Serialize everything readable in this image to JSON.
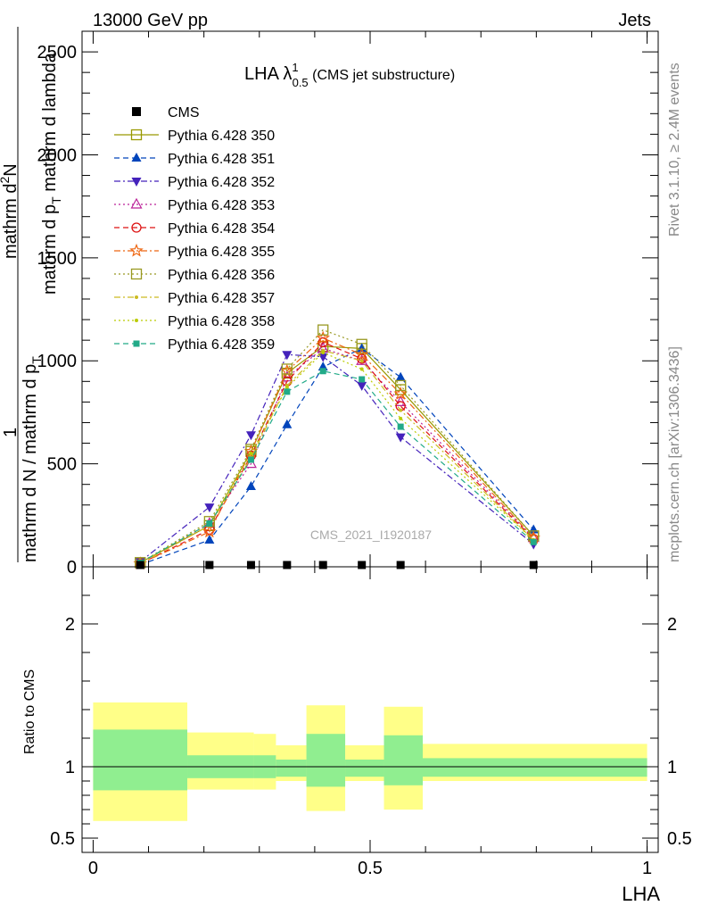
{
  "header": {
    "left": "13000 GeV pp",
    "right": "Jets"
  },
  "side": {
    "rivet": "Rivet 3.1.10, ≥ 2.4M events",
    "mcplots": "mcplots.cern.ch [arXiv:1306.3436]"
  },
  "title": {
    "main": "LHA λ",
    "sup": "1",
    "sub": "0.5",
    "suffix": " (CMS jet substructure)"
  },
  "watermark": "CMS_2021_I1920187",
  "ylabel": {
    "num": "1",
    "den": "mathrm d N / mathrm d p",
    "den_sub": "T",
    "num2": "mathrm d",
    "num2_sup": "2",
    "num2_tail": "N",
    "den2": "mathrm d p",
    "den2_sub": "T",
    "den2_tail": " mathrm d lambda"
  },
  "ratio_ylabel": "Ratio to CMS",
  "xlabel": "LHA",
  "colors": {
    "band_inner": "#90ee90",
    "band_outer": "#ffff88"
  },
  "chart_data": {
    "type": "line",
    "x_edges": [
      0,
      0.17,
      0.29,
      0.345,
      0.42,
      0.49,
      0.565,
      1.0
    ],
    "x_centers": [
      0.085,
      0.21,
      0.285,
      0.35,
      0.415,
      0.485,
      0.555,
      0.795
    ],
    "ylim": [
      0,
      2600
    ],
    "xlim": [
      -0.02,
      1.02
    ],
    "yticks": [
      0,
      500,
      1000,
      1500,
      2000,
      2500
    ],
    "xticks": [
      0,
      0.5,
      1
    ],
    "xtick_labels": [
      "0",
      "0.5",
      "1"
    ],
    "ratio_ylim": [
      0.4,
      2.4
    ],
    "ratio_yticks": [
      0.5,
      1,
      2
    ],
    "ratio_ytick_labels": [
      "0.5",
      "1",
      "2"
    ],
    "data": {
      "name": "CMS",
      "values": [
        0,
        0,
        0,
        0,
        0,
        0,
        0,
        0
      ],
      "x": [
        0.085,
        0.21,
        0.285,
        0.35,
        0.415,
        0.485,
        0.555,
        0.795
      ]
    },
    "ratio_bands": [
      {
        "x0": 0,
        "x1": 0.17,
        "inner": [
          0.835,
          1.26
        ],
        "outer": [
          0.62,
          1.45
        ]
      },
      {
        "x0": 0.17,
        "x1": 0.29,
        "inner": [
          0.92,
          1.08
        ],
        "outer": [
          0.84,
          1.24
        ]
      },
      {
        "x0": 0.29,
        "x1": 0.33,
        "inner": [
          0.92,
          1.08
        ],
        "outer": [
          0.84,
          1.23
        ]
      },
      {
        "x0": 0.33,
        "x1": 0.385,
        "inner": [
          0.93,
          1.05
        ],
        "outer": [
          0.9,
          1.15
        ]
      },
      {
        "x0": 0.385,
        "x1": 0.455,
        "inner": [
          0.86,
          1.23
        ],
        "outer": [
          0.69,
          1.43
        ]
      },
      {
        "x0": 0.455,
        "x1": 0.525,
        "inner": [
          0.93,
          1.05
        ],
        "outer": [
          0.9,
          1.15
        ]
      },
      {
        "x0": 0.525,
        "x1": 0.595,
        "inner": [
          0.87,
          1.22
        ],
        "outer": [
          0.7,
          1.42
        ]
      },
      {
        "x0": 0.595,
        "x1": 1.0,
        "inner": [
          0.93,
          1.06
        ],
        "outer": [
          0.9,
          1.16
        ]
      }
    ],
    "series": [
      {
        "name": "Pythia 6.428 350",
        "color": "#999900",
        "marker": "square-open",
        "dash": "solid",
        "values": [
          20,
          200,
          560,
          940,
          1070,
          1060,
          860,
          150
        ]
      },
      {
        "name": "Pythia 6.428 351",
        "color": "#0044bb",
        "marker": "triangle-up",
        "dash": "dashed",
        "values": [
          10,
          130,
          390,
          690,
          970,
          1060,
          920,
          180
        ]
      },
      {
        "name": "Pythia 6.428 352",
        "color": "#4422bb",
        "marker": "triangle-down",
        "dash": "dashdot",
        "values": [
          25,
          290,
          640,
          1030,
          1020,
          880,
          630,
          110
        ]
      },
      {
        "name": "Pythia 6.428 353",
        "color": "#bb2299",
        "marker": "triangle-open",
        "dash": "dotted",
        "values": [
          15,
          210,
          500,
          920,
          1060,
          1000,
          800,
          140
        ]
      },
      {
        "name": "Pythia 6.428 354",
        "color": "#dd1111",
        "marker": "circle-open",
        "dash": "dashed",
        "values": [
          15,
          180,
          540,
          900,
          1090,
          1010,
          780,
          135
        ]
      },
      {
        "name": "Pythia 6.428 355",
        "color": "#ee6611",
        "marker": "star-open",
        "dash": "dashdot",
        "values": [
          15,
          170,
          560,
          950,
          1110,
          1030,
          840,
          140
        ]
      },
      {
        "name": "Pythia 6.428 356",
        "color": "#999922",
        "marker": "square-open",
        "dash": "dotted",
        "values": [
          20,
          220,
          570,
          960,
          1150,
          1080,
          880,
          150
        ]
      },
      {
        "name": "Pythia 6.428 357",
        "color": "#ccbb22",
        "marker": "dot",
        "dash": "dashdot",
        "values": [
          15,
          200,
          530,
          880,
          1050,
          1000,
          760,
          130
        ]
      },
      {
        "name": "Pythia 6.428 358",
        "color": "#bbcc00",
        "marker": "dot",
        "dash": "dotted",
        "values": [
          20,
          210,
          550,
          870,
          1040,
          960,
          720,
          130
        ]
      },
      {
        "name": "Pythia 6.428 359",
        "color": "#22aa88",
        "marker": "square",
        "dash": "dashed",
        "values": [
          20,
          210,
          520,
          850,
          950,
          910,
          680,
          120
        ]
      }
    ]
  }
}
